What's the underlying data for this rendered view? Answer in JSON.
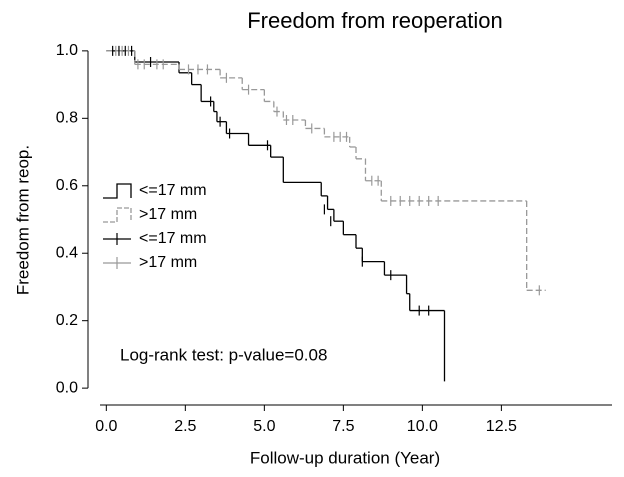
{
  "chart_data": {
    "type": "km",
    "title": "Freedom from reoperation",
    "x_label": "Follow-up  duration (Year)",
    "y_label": "Freedom from reop.",
    "annotation": "Log-rank test: p-value=0.08",
    "xlim": [
      -0.2,
      16
    ],
    "ylim": [
      -0.05,
      1.05
    ],
    "xticks": [
      {
        "value": 0,
        "label": "0.0"
      },
      2.5,
      {
        "value": 5,
        "label": "5.0"
      },
      7.5,
      {
        "value": 10,
        "label": "10.0"
      },
      12.5
    ],
    "yticks": [
      {
        "value": 0,
        "label": "0.0"
      },
      0.2,
      0.4,
      0.6,
      0.8,
      {
        "value": 1,
        "label": "1.0"
      }
    ],
    "series": [
      {
        "name": "<=17 mm",
        "style": "step",
        "color": "#000000",
        "x": [
          0,
          0.9,
          2.3,
          2.7,
          3.0,
          3.4,
          3.5,
          3.8,
          4.5,
          5.2,
          5.6,
          6.8,
          7.0,
          7.2,
          7.5,
          7.9,
          8.1,
          8.8,
          9.5,
          9.6,
          10.7
        ],
        "y": [
          1.0,
          0.967,
          0.935,
          0.9,
          0.85,
          0.82,
          0.79,
          0.755,
          0.72,
          0.685,
          0.61,
          0.57,
          0.53,
          0.495,
          0.455,
          0.415,
          0.375,
          0.335,
          0.28,
          0.23,
          0.02
        ]
      },
      {
        "name": ">17 mm",
        "style": "step",
        "color": "#999999",
        "x": [
          0,
          0.9,
          2.3,
          3.6,
          4.3,
          5.0,
          5.3,
          5.6,
          6.3,
          6.9,
          7.7,
          7.9,
          8.2,
          8.7,
          13.3,
          13.9
        ],
        "y": [
          1.0,
          0.96,
          0.945,
          0.92,
          0.885,
          0.85,
          0.82,
          0.795,
          0.77,
          0.745,
          0.715,
          0.68,
          0.615,
          0.555,
          0.29,
          0.29
        ]
      },
      {
        "name": "<=17 mm",
        "style": "censor",
        "color": "#000000",
        "x": [
          0.2,
          0.4,
          0.6,
          0.8,
          1.4,
          3.3,
          3.6,
          3.9,
          5.1,
          6.9,
          7.1,
          8.1,
          9.0,
          9.9,
          10.2
        ],
        "y": [
          1.0,
          1.0,
          1.0,
          1.0,
          0.967,
          0.85,
          0.79,
          0.755,
          0.72,
          0.53,
          0.495,
          0.375,
          0.335,
          0.23,
          0.23
        ]
      },
      {
        "name": ">17 mm",
        "style": "censor",
        "color": "#999999",
        "x": [
          0.3,
          0.5,
          0.7,
          1.0,
          1.2,
          1.6,
          1.8,
          2.6,
          2.9,
          3.2,
          3.8,
          4.5,
          5.4,
          5.7,
          5.9,
          6.5,
          7.2,
          7.4,
          7.6,
          8.4,
          8.6,
          9.0,
          9.3,
          9.6,
          9.9,
          10.2,
          10.5,
          13.7
        ],
        "y": [
          1.0,
          1.0,
          1.0,
          0.96,
          0.96,
          0.96,
          0.96,
          0.945,
          0.945,
          0.945,
          0.92,
          0.885,
          0.82,
          0.795,
          0.795,
          0.77,
          0.745,
          0.745,
          0.745,
          0.615,
          0.615,
          0.555,
          0.555,
          0.555,
          0.555,
          0.555,
          0.555,
          0.29
        ]
      }
    ]
  }
}
